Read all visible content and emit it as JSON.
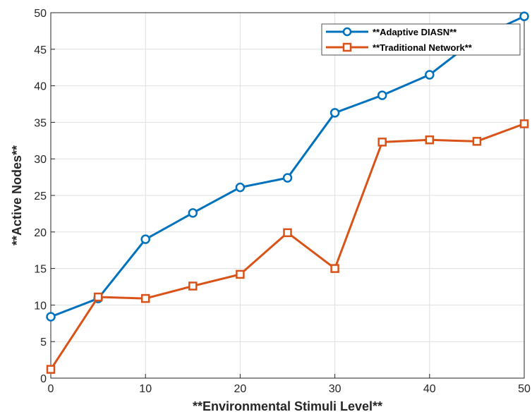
{
  "chart_data": {
    "type": "line",
    "title": "",
    "xlabel": "**Environmental Stimuli Level**",
    "ylabel": "**Active Nodes**",
    "xlim": [
      0,
      50
    ],
    "ylim": [
      0,
      50
    ],
    "xticks": [
      0,
      10,
      20,
      30,
      40,
      50
    ],
    "yticks": [
      0,
      5,
      10,
      15,
      20,
      25,
      30,
      35,
      40,
      45,
      50
    ],
    "grid": true,
    "legend_position": "top-right",
    "x": [
      0,
      5,
      10,
      15,
      20,
      25,
      30,
      35,
      40,
      45,
      50
    ],
    "series": [
      {
        "name": "**Adaptive DIASN**",
        "marker": "circle",
        "color": "#0072BD",
        "values": [
          8.4,
          10.9,
          19.0,
          22.6,
          26.1,
          27.4,
          36.3,
          38.7,
          41.5,
          46.5,
          49.5
        ]
      },
      {
        "name": "**Traditional Network**",
        "marker": "square",
        "color": "#D95319",
        "values": [
          1.2,
          11.1,
          10.9,
          12.6,
          14.2,
          19.9,
          15.0,
          32.3,
          32.6,
          32.4,
          34.8
        ]
      }
    ]
  }
}
